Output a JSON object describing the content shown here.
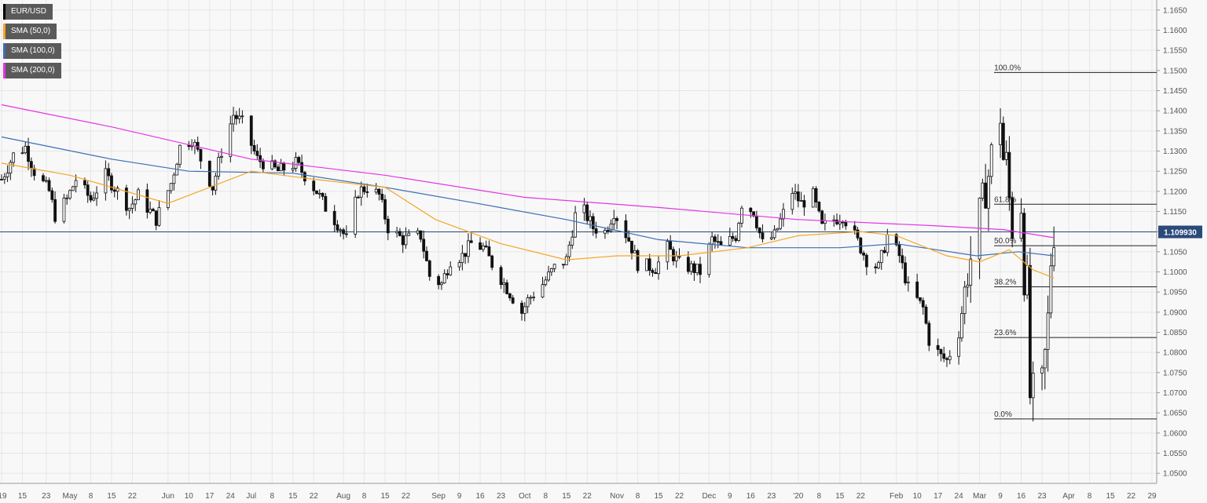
{
  "chart_data": {
    "type": "candlestick",
    "symbol": "EUR/USD",
    "legend": [
      {
        "label": "EUR/USD",
        "color": "#000000"
      },
      {
        "label": "SMA (50,0)",
        "color": "#f5a623"
      },
      {
        "label": "SMA (100,0)",
        "color": "#3c6db5"
      },
      {
        "label": "SMA (200,0)",
        "color": "#e632e6"
      }
    ],
    "last_price": 1.10993,
    "last_price_label": "1.109930",
    "ylim": [
      1.0475,
      1.1675
    ],
    "y_ticks": [
      "1.1650",
      "1.1600",
      "1.1550",
      "1.1500",
      "1.1450",
      "1.1400",
      "1.1350",
      "1.1300",
      "1.1250",
      "1.1200",
      "1.1150",
      "1.1100",
      "1.1050",
      "1.1000",
      "1.0950",
      "1.0900",
      "1.0850",
      "1.0800",
      "1.0750",
      "1.0700",
      "1.0650",
      "1.0600",
      "1.0550",
      "1.0500"
    ],
    "x_ticks": [
      {
        "label": "'19",
        "date": "2019-04-08"
      },
      {
        "label": "15",
        "date": "2019-04-15"
      },
      {
        "label": "23",
        "date": "2019-04-23"
      },
      {
        "label": "May",
        "date": "2019-05-01"
      },
      {
        "label": "8",
        "date": "2019-05-08"
      },
      {
        "label": "15",
        "date": "2019-05-15"
      },
      {
        "label": "22",
        "date": "2019-05-22"
      },
      {
        "label": "Jun",
        "date": "2019-06-03"
      },
      {
        "label": "10",
        "date": "2019-06-10"
      },
      {
        "label": "17",
        "date": "2019-06-17"
      },
      {
        "label": "24",
        "date": "2019-06-24"
      },
      {
        "label": "Jul",
        "date": "2019-07-01"
      },
      {
        "label": "8",
        "date": "2019-07-08"
      },
      {
        "label": "15",
        "date": "2019-07-15"
      },
      {
        "label": "22",
        "date": "2019-07-22"
      },
      {
        "label": "Aug",
        "date": "2019-08-01"
      },
      {
        "label": "8",
        "date": "2019-08-08"
      },
      {
        "label": "15",
        "date": "2019-08-15"
      },
      {
        "label": "22",
        "date": "2019-08-22"
      },
      {
        "label": "Sep",
        "date": "2019-09-02"
      },
      {
        "label": "9",
        "date": "2019-09-09"
      },
      {
        "label": "16",
        "date": "2019-09-16"
      },
      {
        "label": "23",
        "date": "2019-09-23"
      },
      {
        "label": "Oct",
        "date": "2019-10-01"
      },
      {
        "label": "8",
        "date": "2019-10-08"
      },
      {
        "label": "15",
        "date": "2019-10-15"
      },
      {
        "label": "22",
        "date": "2019-10-22"
      },
      {
        "label": "Nov",
        "date": "2019-11-01"
      },
      {
        "label": "8",
        "date": "2019-11-08"
      },
      {
        "label": "15",
        "date": "2019-11-15"
      },
      {
        "label": "22",
        "date": "2019-11-22"
      },
      {
        "label": "Dec",
        "date": "2019-12-02"
      },
      {
        "label": "9",
        "date": "2019-12-09"
      },
      {
        "label": "16",
        "date": "2019-12-16"
      },
      {
        "label": "23",
        "date": "2019-12-23"
      },
      {
        "label": "'20",
        "date": "2020-01-01"
      },
      {
        "label": "8",
        "date": "2020-01-08"
      },
      {
        "label": "15",
        "date": "2020-01-15"
      },
      {
        "label": "22",
        "date": "2020-01-22"
      },
      {
        "label": "Feb",
        "date": "2020-02-03"
      },
      {
        "label": "10",
        "date": "2020-02-10"
      },
      {
        "label": "17",
        "date": "2020-02-17"
      },
      {
        "label": "24",
        "date": "2020-02-24"
      },
      {
        "label": "Mar",
        "date": "2020-03-02"
      },
      {
        "label": "9",
        "date": "2020-03-09"
      },
      {
        "label": "16",
        "date": "2020-03-16"
      },
      {
        "label": "23",
        "date": "2020-03-23"
      },
      {
        "label": "Apr",
        "date": "2020-04-01"
      },
      {
        "label": "8",
        "date": "2020-04-08"
      },
      {
        "label": "15",
        "date": "2020-04-15"
      },
      {
        "label": "22",
        "date": "2020-04-22"
      },
      {
        "label": "29",
        "date": "2020-04-29"
      }
    ],
    "fibonacci": [
      {
        "label": "100.0%",
        "value": 1.1495
      },
      {
        "label": "61.8%",
        "value": 1.1168
      },
      {
        "label": "50.0%",
        "value": 1.1065
      },
      {
        "label": "38.2%",
        "value": 1.0963
      },
      {
        "label": "23.6%",
        "value": 1.0837
      },
      {
        "label": "0.0%",
        "value": 1.0635
      }
    ],
    "fib_anchor_date": "2020-03-09",
    "candle_anchors": [
      [
        "2019-04-08",
        1.123
      ],
      [
        "2019-04-12",
        1.129
      ],
      [
        "2019-04-16",
        1.131
      ],
      [
        "2019-04-19",
        1.125
      ],
      [
        "2019-04-24",
        1.12
      ],
      [
        "2019-04-26",
        1.114
      ],
      [
        "2019-04-30",
        1.118
      ],
      [
        "2019-05-03",
        1.123
      ],
      [
        "2019-05-08",
        1.118
      ],
      [
        "2019-05-13",
        1.124
      ],
      [
        "2019-05-17",
        1.12
      ],
      [
        "2019-05-21",
        1.116
      ],
      [
        "2019-05-24",
        1.119
      ],
      [
        "2019-05-30",
        1.113
      ],
      [
        "2019-06-04",
        1.122
      ],
      [
        "2019-06-07",
        1.131
      ],
      [
        "2019-06-11",
        1.133
      ],
      [
        "2019-06-14",
        1.128
      ],
      [
        "2019-06-18",
        1.121
      ],
      [
        "2019-06-21",
        1.13
      ],
      [
        "2019-06-25",
        1.139
      ],
      [
        "2019-06-28",
        1.137
      ],
      [
        "2019-07-03",
        1.128
      ],
      [
        "2019-07-10",
        1.125
      ],
      [
        "2019-07-16",
        1.127
      ],
      [
        "2019-07-23",
        1.12
      ],
      [
        "2019-07-26",
        1.116
      ],
      [
        "2019-07-31",
        1.111
      ],
      [
        "2019-08-02",
        1.108
      ],
      [
        "2019-08-06",
        1.12
      ],
      [
        "2019-08-09",
        1.121
      ],
      [
        "2019-08-13",
        1.119
      ],
      [
        "2019-08-16",
        1.111
      ],
      [
        "2019-08-21",
        1.108
      ],
      [
        "2019-08-27",
        1.109
      ],
      [
        "2019-08-30",
        1.099
      ],
      [
        "2019-09-03",
        1.097
      ],
      [
        "2019-09-06",
        1.103
      ],
      [
        "2019-09-10",
        1.104
      ],
      [
        "2019-09-13",
        1.107
      ],
      [
        "2019-09-17",
        1.106
      ],
      [
        "2019-09-20",
        1.102
      ],
      [
        "2019-09-25",
        1.096
      ],
      [
        "2019-09-30",
        1.09
      ],
      [
        "2019-10-02",
        1.093
      ],
      [
        "2019-10-07",
        1.097
      ],
      [
        "2019-10-11",
        1.101
      ],
      [
        "2019-10-15",
        1.103
      ],
      [
        "2019-10-18",
        1.114
      ],
      [
        "2019-10-21",
        1.115
      ],
      [
        "2019-10-24",
        1.111
      ],
      [
        "2019-10-28",
        1.11
      ],
      [
        "2019-10-31",
        1.115
      ],
      [
        "2019-11-05",
        1.108
      ],
      [
        "2019-11-08",
        1.102
      ],
      [
        "2019-11-14",
        1.101
      ],
      [
        "2019-11-18",
        1.106
      ],
      [
        "2019-11-22",
        1.102
      ],
      [
        "2019-11-26",
        1.101
      ],
      [
        "2019-11-29",
        1.1
      ],
      [
        "2019-12-03",
        1.108
      ],
      [
        "2019-12-06",
        1.106
      ],
      [
        "2019-12-11",
        1.109
      ],
      [
        "2019-12-13",
        1.117
      ],
      [
        "2019-12-17",
        1.115
      ],
      [
        "2019-12-20",
        1.107
      ],
      [
        "2019-12-24",
        1.109
      ],
      [
        "2019-12-30",
        1.12
      ],
      [
        "2020-01-02",
        1.117
      ],
      [
        "2020-01-06",
        1.119
      ],
      [
        "2020-01-09",
        1.111
      ],
      [
        "2020-01-13",
        1.113
      ],
      [
        "2020-01-16",
        1.114
      ],
      [
        "2020-01-20",
        1.109
      ],
      [
        "2020-01-24",
        1.103
      ],
      [
        "2020-01-28",
        1.101
      ],
      [
        "2020-01-31",
        1.109
      ],
      [
        "2020-02-04",
        1.104
      ],
      [
        "2020-02-07",
        1.096
      ],
      [
        "2020-02-12",
        1.091
      ],
      [
        "2020-02-14",
        1.083
      ],
      [
        "2020-02-18",
        1.079
      ],
      [
        "2020-02-20",
        1.078
      ],
      [
        "2020-02-24",
        1.085
      ],
      [
        "2020-02-27",
        1.1
      ],
      [
        "2020-03-02",
        1.114
      ],
      [
        "2020-03-05",
        1.124
      ],
      [
        "2020-03-06",
        1.129
      ],
      [
        "2020-03-09",
        1.139
      ],
      [
        "2020-03-10",
        1.128
      ],
      [
        "2020-03-11",
        1.127
      ],
      [
        "2020-03-12",
        1.118
      ],
      [
        "2020-03-13",
        1.111
      ],
      [
        "2020-03-16",
        1.117
      ],
      [
        "2020-03-17",
        1.099
      ],
      [
        "2020-03-18",
        1.097
      ],
      [
        "2020-03-19",
        1.069
      ],
      [
        "2020-03-20",
        1.07
      ],
      [
        "2020-03-23",
        1.072
      ],
      [
        "2020-03-24",
        1.079
      ],
      [
        "2020-03-25",
        1.088
      ],
      [
        "2020-03-26",
        1.103
      ],
      [
        "2020-03-27",
        1.11
      ]
    ],
    "sma50": [
      [
        "2019-04-08",
        1.127
      ],
      [
        "2019-05-01",
        1.124
      ],
      [
        "2019-06-03",
        1.117
      ],
      [
        "2019-07-01",
        1.125
      ],
      [
        "2019-07-22",
        1.123
      ],
      [
        "2019-08-15",
        1.121
      ],
      [
        "2019-09-01",
        1.113
      ],
      [
        "2019-09-23",
        1.107
      ],
      [
        "2019-10-15",
        1.103
      ],
      [
        "2019-11-01",
        1.104
      ],
      [
        "2019-11-22",
        1.104
      ],
      [
        "2019-12-15",
        1.106
      ],
      [
        "2020-01-01",
        1.109
      ],
      [
        "2020-01-22",
        1.11
      ],
      [
        "2020-02-03",
        1.109
      ],
      [
        "2020-02-20",
        1.104
      ],
      [
        "2020-03-02",
        1.1025
      ],
      [
        "2020-03-12",
        1.1055
      ],
      [
        "2020-03-20",
        1.1005
      ],
      [
        "2020-03-27",
        1.0985
      ]
    ],
    "sma100": [
      [
        "2019-04-08",
        1.1335
      ],
      [
        "2019-05-15",
        1.128
      ],
      [
        "2019-06-10",
        1.125
      ],
      [
        "2019-07-15",
        1.1245
      ],
      [
        "2019-08-15",
        1.121
      ],
      [
        "2019-09-15",
        1.117
      ],
      [
        "2019-10-15",
        1.113
      ],
      [
        "2019-11-15",
        1.108
      ],
      [
        "2019-12-15",
        1.106
      ],
      [
        "2020-01-15",
        1.106
      ],
      [
        "2020-02-03",
        1.107
      ],
      [
        "2020-03-01",
        1.104
      ],
      [
        "2020-03-15",
        1.105
      ],
      [
        "2020-03-27",
        1.104
      ]
    ],
    "sma200": [
      [
        "2019-04-08",
        1.1415
      ],
      [
        "2019-05-15",
        1.136
      ],
      [
        "2019-07-01",
        1.128
      ],
      [
        "2019-08-15",
        1.124
      ],
      [
        "2019-10-01",
        1.1185
      ],
      [
        "2019-11-15",
        1.116
      ],
      [
        "2020-01-01",
        1.113
      ],
      [
        "2020-02-15",
        1.1115
      ],
      [
        "2020-03-10",
        1.1105
      ],
      [
        "2020-03-27",
        1.1085
      ]
    ]
  }
}
